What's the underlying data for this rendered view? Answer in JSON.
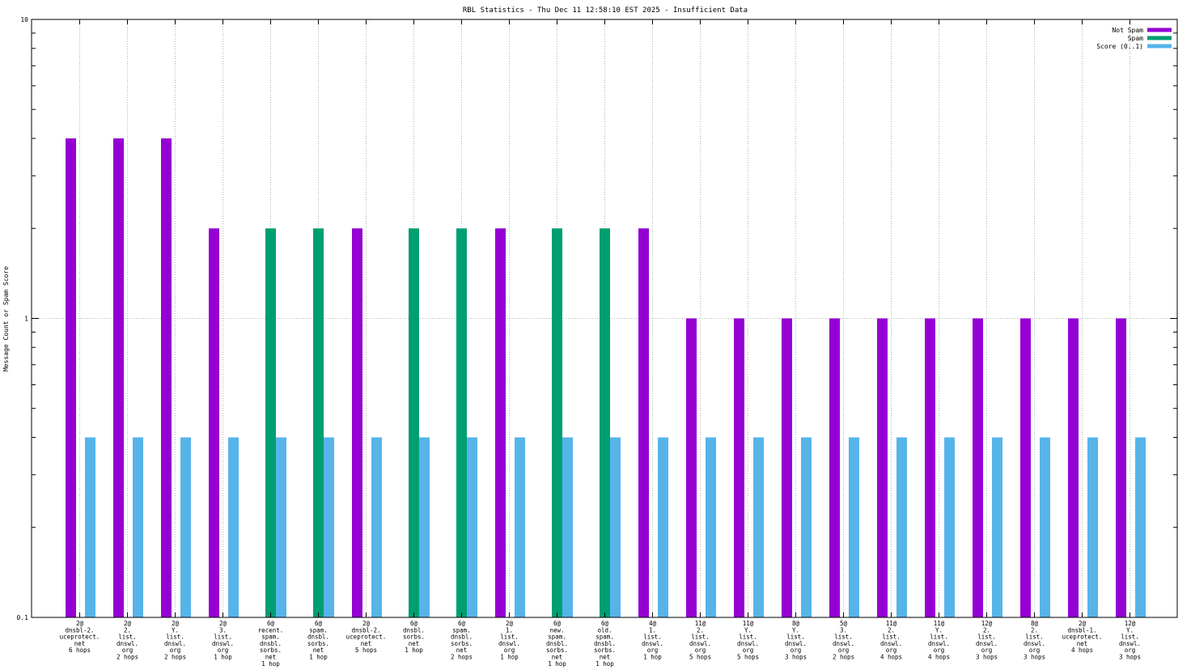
{
  "colors": {
    "not_spam": "#9400d3",
    "spam": "#009e73",
    "score": "#56b4e9",
    "grid": "#a0a0a0",
    "axis": "#000000"
  },
  "chart_data": {
    "type": "bar",
    "title": "RBL Statistics - Thu Dec 11 12:58:10 EST 2025 - Insufficient Data",
    "ylabel": "Message Count or Spam Score",
    "xlabel": "",
    "yscale": "log",
    "ylim": [
      0.1,
      10
    ],
    "yticks": [
      "0.1",
      "1",
      "10"
    ],
    "grid": true,
    "legend_position": "top-right",
    "categories": [
      [
        "2@",
        "dnsbl-2.",
        "uceprotect.",
        "net",
        "6 hops"
      ],
      [
        "2@",
        "2.",
        "list.",
        "dnswl.",
        "org",
        "2 hops"
      ],
      [
        "2@",
        "Y.",
        "list.",
        "dnswl.",
        "org",
        "2 hops"
      ],
      [
        "2@",
        "3.",
        "list.",
        "dnswl.",
        "org",
        "1 hop"
      ],
      [
        "6@",
        "recent.",
        "spam.",
        "dnsbl.",
        "sorbs.",
        "net",
        "1 hop"
      ],
      [
        "6@",
        "spam.",
        "dnsbl.",
        "sorbs.",
        "net",
        "1 hop"
      ],
      [
        "2@",
        "dnsbl-2.",
        "uceprotect.",
        "net",
        "5 hops"
      ],
      [
        "6@",
        "dnsbl.",
        "sorbs.",
        "net",
        "1 hop"
      ],
      [
        "6@",
        "spam.",
        "dnsbl.",
        "sorbs.",
        "net",
        "2 hops"
      ],
      [
        "2@",
        "1.",
        "list.",
        "dnswl.",
        "org",
        "1 hop"
      ],
      [
        "6@",
        "new.",
        "spam.",
        "dnsbl.",
        "sorbs.",
        "net",
        "1 hop"
      ],
      [
        "6@",
        "old.",
        "spam.",
        "dnsbl.",
        "sorbs.",
        "net",
        "1 hop"
      ],
      [
        "4@",
        "1.",
        "list.",
        "dnswl.",
        "org",
        "1 hop"
      ],
      [
        "11@",
        "2.",
        "list.",
        "dnswl.",
        "org",
        "5 hops"
      ],
      [
        "11@",
        "Y.",
        "list.",
        "dnswl.",
        "org",
        "5 hops"
      ],
      [
        "8@",
        "Y.",
        "list.",
        "dnswl.",
        "org",
        "3 hops"
      ],
      [
        "5@",
        "3.",
        "list.",
        "dnswl.",
        "org",
        "2 hops"
      ],
      [
        "11@",
        "2.",
        "list.",
        "dnswl.",
        "org",
        "4 hops"
      ],
      [
        "11@",
        "Y.",
        "list.",
        "dnswl.",
        "org",
        "4 hops"
      ],
      [
        "12@",
        "2.",
        "list.",
        "dnswl.",
        "org",
        "3 hops"
      ],
      [
        "8@",
        "2.",
        "list.",
        "dnswl.",
        "org",
        "3 hops"
      ],
      [
        "2@",
        "dnsbl-1.",
        "uceprotect.",
        "net",
        "4 hops"
      ],
      [
        "12@",
        "Y.",
        "list.",
        "dnswl.",
        "org",
        "3 hops"
      ]
    ],
    "series": [
      {
        "name": "Not Spam",
        "values": [
          4,
          4,
          4,
          2,
          0,
          0,
          2,
          0,
          0,
          2,
          0,
          0,
          2,
          1,
          1,
          1,
          1,
          1,
          1,
          1,
          1,
          1,
          1
        ]
      },
      {
        "name": "Spam",
        "values": [
          0,
          0,
          0,
          0,
          2,
          2,
          0,
          2,
          2,
          0,
          2,
          2,
          0,
          0,
          0,
          0,
          0,
          0,
          0,
          0,
          0,
          0,
          0
        ]
      },
      {
        "name": "Score (0..1)",
        "values": [
          0.4,
          0.4,
          0.4,
          0.4,
          0.4,
          0.4,
          0.4,
          0.4,
          0.4,
          0.4,
          0.4,
          0.4,
          0.4,
          0.4,
          0.4,
          0.4,
          0.4,
          0.4,
          0.4,
          0.4,
          0.4,
          0.4,
          0.4
        ]
      }
    ]
  }
}
